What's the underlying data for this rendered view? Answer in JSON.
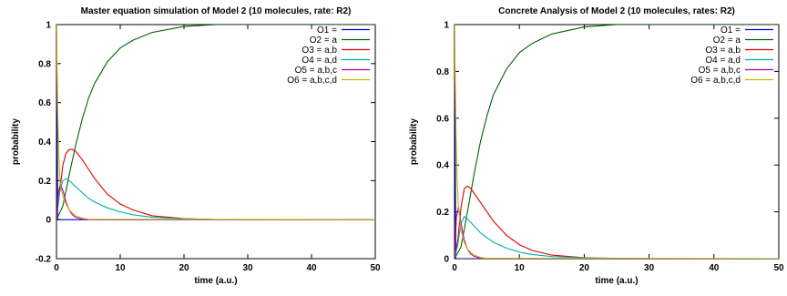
{
  "chart_data": [
    {
      "type": "line",
      "title": "Master equation simulation of Model 2 (10 molecules, rate: R2)",
      "xlabel": "time (a.u.)",
      "ylabel": "probability",
      "xlim": [
        0,
        50
      ],
      "ylim": [
        -0.2,
        1
      ],
      "xticks": [
        "0",
        "10",
        "20",
        "30",
        "40",
        "50"
      ],
      "yticks": [
        "-0.2",
        "0",
        "0.2",
        "0.4",
        "0.6",
        "0.8",
        "1"
      ],
      "legend_position": "top-right",
      "series": [
        {
          "name": "O1 =",
          "color": "#0000cc",
          "x": [
            0,
            0.2,
            0.5,
            1,
            2,
            50
          ],
          "y": [
            1,
            0,
            0,
            0,
            0,
            0
          ]
        },
        {
          "name": "O2 = a",
          "color": "#006400",
          "x": [
            0,
            1,
            2,
            3,
            4,
            5,
            6,
            8,
            10,
            12,
            15,
            20,
            25,
            30,
            40,
            50
          ],
          "y": [
            0,
            0.07,
            0.23,
            0.38,
            0.51,
            0.62,
            0.7,
            0.81,
            0.88,
            0.92,
            0.96,
            0.99,
            1.0,
            1.0,
            1.0,
            1.0
          ]
        },
        {
          "name": "O3 = a,b",
          "color": "#dd0000",
          "x": [
            0,
            0.5,
            1,
            1.5,
            2,
            2.5,
            3,
            4,
            5,
            6,
            8,
            10,
            12,
            15,
            20,
            25,
            30,
            40,
            50
          ],
          "y": [
            0,
            0.14,
            0.28,
            0.34,
            0.36,
            0.36,
            0.35,
            0.31,
            0.26,
            0.21,
            0.13,
            0.08,
            0.05,
            0.02,
            0.005,
            0.001,
            0,
            0,
            0
          ]
        },
        {
          "name": "O4 = a,d",
          "color": "#00b0b0",
          "x": [
            0,
            0.5,
            1,
            1.5,
            2,
            3,
            4,
            5,
            6,
            8,
            10,
            12,
            15,
            20,
            25,
            30,
            40,
            50
          ],
          "y": [
            0,
            0.14,
            0.2,
            0.21,
            0.2,
            0.17,
            0.14,
            0.11,
            0.09,
            0.06,
            0.04,
            0.025,
            0.012,
            0.004,
            0.001,
            0,
            0,
            0
          ]
        },
        {
          "name": "O5 = a,b,c",
          "color": "#b000b0",
          "x": [
            0,
            0.3,
            0.6,
            1,
            1.5,
            2,
            2.5,
            3,
            4,
            5,
            50
          ],
          "y": [
            0,
            0.14,
            0.18,
            0.15,
            0.09,
            0.05,
            0.025,
            0.012,
            0.003,
            0.001,
            0
          ]
        },
        {
          "name": "O6 = a,b,c,d",
          "color": "#c8b400",
          "x": [
            0,
            0.2,
            0.4,
            0.6,
            1,
            1.5,
            2,
            3,
            4,
            5,
            50
          ],
          "y": [
            1,
            0.55,
            0.3,
            0.18,
            0.12,
            0.08,
            0.05,
            0.02,
            0.008,
            0.002,
            0
          ]
        }
      ]
    },
    {
      "type": "line",
      "title": "Concrete Analysis of Model 2 (10 molecules, rates: R2)",
      "xlabel": "time (a.u.)",
      "ylabel": "probability",
      "xlim": [
        0,
        50
      ],
      "ylim": [
        0,
        1
      ],
      "xticks": [
        "0",
        "10",
        "20",
        "30",
        "40",
        "50"
      ],
      "yticks": [
        "0",
        "0.2",
        "0.4",
        "0.6",
        "0.8",
        "1"
      ],
      "legend_position": "top-right",
      "series": [
        {
          "name": "O1 =",
          "color": "#0000cc",
          "x": [
            0,
            0.2,
            0.5,
            1,
            2,
            50
          ],
          "y": [
            1,
            0,
            0,
            0,
            0,
            0
          ]
        },
        {
          "name": "O2 = a",
          "color": "#006400",
          "x": [
            0,
            1,
            2,
            3,
            4,
            5,
            6,
            8,
            10,
            12,
            15,
            20,
            25,
            30,
            40,
            50
          ],
          "y": [
            0,
            0.05,
            0.2,
            0.36,
            0.5,
            0.61,
            0.7,
            0.81,
            0.88,
            0.92,
            0.96,
            0.99,
            1.0,
            1.0,
            1.0,
            1.0
          ]
        },
        {
          "name": "O3 = a,b",
          "color": "#dd0000",
          "x": [
            0,
            0.5,
            1,
            1.5,
            2,
            2.5,
            3,
            4,
            5,
            6,
            8,
            10,
            12,
            15,
            20,
            25,
            30,
            40,
            50
          ],
          "y": [
            0,
            0.08,
            0.22,
            0.3,
            0.31,
            0.3,
            0.28,
            0.24,
            0.2,
            0.16,
            0.1,
            0.06,
            0.035,
            0.015,
            0.004,
            0.001,
            0,
            0,
            0
          ]
        },
        {
          "name": "O4 = a,d",
          "color": "#00b0b0",
          "x": [
            0,
            0.5,
            1,
            1.5,
            2,
            3,
            4,
            5,
            6,
            8,
            10,
            12,
            15,
            20,
            25,
            30,
            40,
            50
          ],
          "y": [
            0,
            0.06,
            0.15,
            0.18,
            0.17,
            0.14,
            0.11,
            0.09,
            0.07,
            0.045,
            0.028,
            0.018,
            0.009,
            0.003,
            0.001,
            0,
            0,
            0
          ]
        },
        {
          "name": "O5 = a,b,c",
          "color": "#b000b0",
          "x": [
            0,
            0.3,
            0.6,
            1,
            1.5,
            2,
            2.5,
            3,
            4,
            5,
            50
          ],
          "y": [
            0,
            0.18,
            0.22,
            0.15,
            0.08,
            0.04,
            0.02,
            0.01,
            0.002,
            0.001,
            0
          ]
        },
        {
          "name": "O6 = a,b,c,d",
          "color": "#c8b400",
          "x": [
            0,
            0.2,
            0.4,
            0.6,
            1,
            1.5,
            2,
            3,
            4,
            5,
            50
          ],
          "y": [
            1,
            0.6,
            0.35,
            0.22,
            0.12,
            0.07,
            0.04,
            0.015,
            0.005,
            0.001,
            0
          ]
        }
      ]
    }
  ]
}
